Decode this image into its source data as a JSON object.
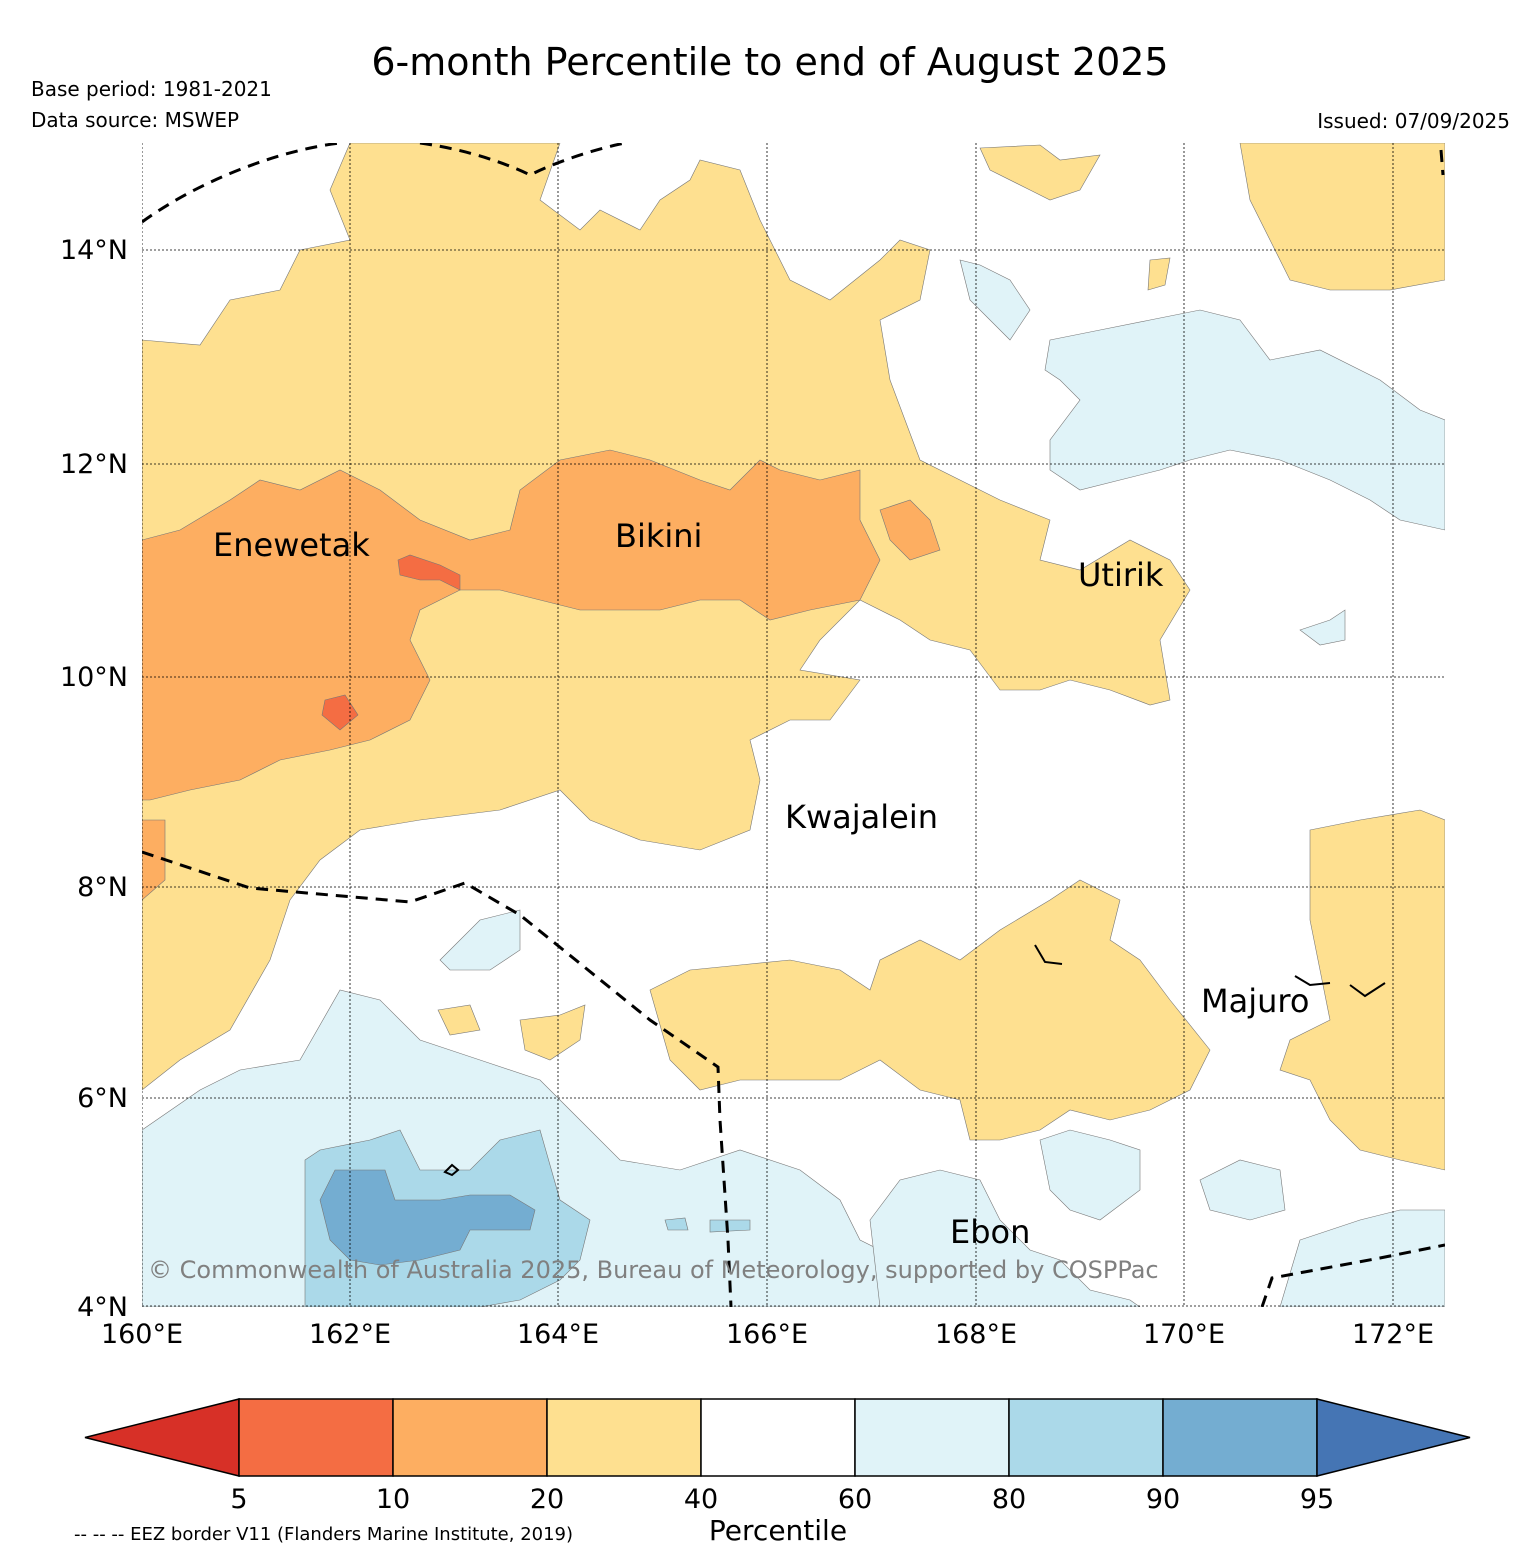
{
  "header": {
    "title": "6-month Percentile to end of August 2025",
    "base_period": "Base period: 1981-2021",
    "data_source": "Data source: MSWEP",
    "issued": "Issued: 07/09/2025"
  },
  "map": {
    "lat_labels": [
      "14°N",
      "12°N",
      "10°N",
      "8°N",
      "6°N",
      "4°N"
    ],
    "lon_labels": [
      "160°E",
      "162°E",
      "164°E",
      "166°E",
      "168°E",
      "170°E",
      "172°E"
    ],
    "places": {
      "enewetak": "Enewetak",
      "bikini": "Bikini",
      "utirik": "Utirik",
      "kwajalein": "Kwajalein",
      "majuro": "Majuro",
      "ebon": "Ebon"
    },
    "copyright": "© Commonwealth of Australia 2025, Bureau of Meteorology, supported by COSPPac"
  },
  "legend": {
    "ticks": [
      "5",
      "10",
      "20",
      "40",
      "60",
      "80",
      "90",
      "95"
    ],
    "colors": [
      "#d73027",
      "#f46d43",
      "#fdae61",
      "#fee090",
      "#ffffff",
      "#e0f3f8",
      "#abd9e9",
      "#74add1",
      "#4575b4"
    ],
    "label": "Percentile",
    "eez_note": "-- -- -- EEZ border V11 (Flanders Marine Institute, 2019)"
  }
}
